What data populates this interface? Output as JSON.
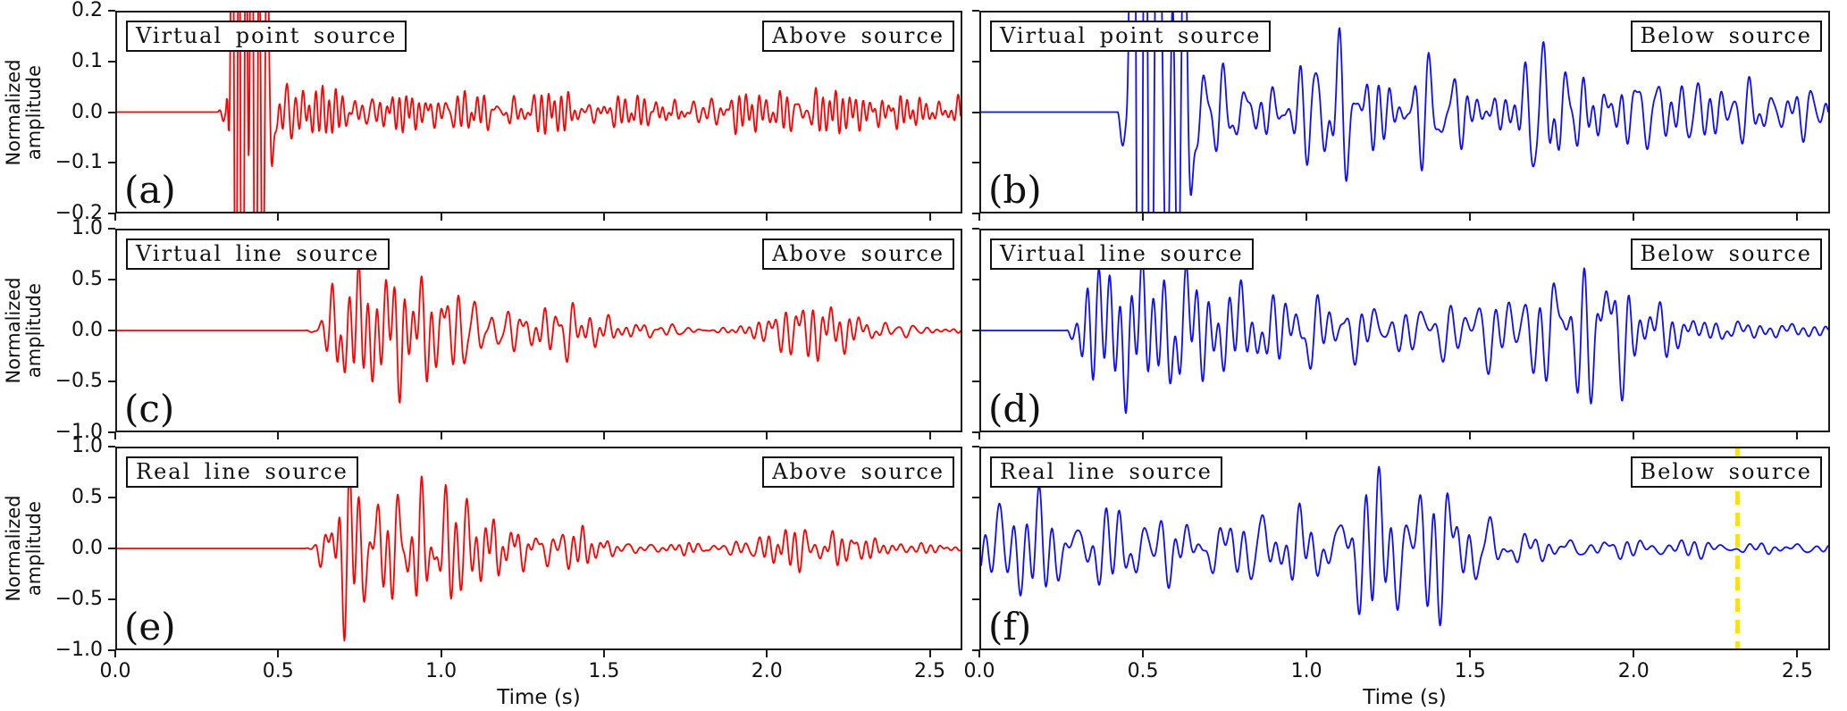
{
  "figure": {
    "background": "#ffffff",
    "description": "Six-panel seismic waveform comparison figure"
  },
  "chart_data": {
    "type": "line",
    "xlabel": "Time (s)",
    "ylabel_lines": [
      "Normalized",
      "amplitude"
    ],
    "xlim": [
      0,
      2.6
    ],
    "xtick_labels": [
      "0.0",
      "0.5",
      "1.0",
      "1.5",
      "2.0",
      "2.5"
    ],
    "xtick_values": [
      0,
      0.5,
      1.0,
      1.5,
      2.0,
      2.5
    ],
    "grid": false,
    "legend": "none",
    "panels": [
      {
        "id": "a",
        "row": 0,
        "col": 0,
        "panel_label": "(a)",
        "source_label": "Virtual point source",
        "position_label": "Above source",
        "color": "#ff0000",
        "yabs": 0.2,
        "ytick_labels": [
          "0.2",
          "0.1",
          "0.0",
          "−0.1",
          "−0.2"
        ],
        "ytick_values": [
          0.2,
          0.1,
          0.0,
          -0.1,
          -0.2
        ],
        "onset_s": 0.33,
        "clips_beyond_axis": true,
        "freq_hz": 26,
        "seed": 11,
        "envelope": [
          [
            0,
            0
          ],
          [
            0.31,
            0
          ],
          [
            0.335,
            0.05
          ],
          [
            0.355,
            1.3
          ],
          [
            0.43,
            1.4
          ],
          [
            0.47,
            0.45
          ],
          [
            0.52,
            0.09
          ],
          [
            0.6,
            0.05
          ],
          [
            0.8,
            0.045
          ],
          [
            1.0,
            0.05
          ],
          [
            1.15,
            0.06
          ],
          [
            1.3,
            0.045
          ],
          [
            1.5,
            0.04
          ],
          [
            1.7,
            0.045
          ],
          [
            1.9,
            0.05
          ],
          [
            2.05,
            0.06
          ],
          [
            2.2,
            0.05
          ],
          [
            2.4,
            0.04
          ],
          [
            2.6,
            0.04
          ]
        ]
      },
      {
        "id": "b",
        "row": 0,
        "col": 1,
        "panel_label": "(b)",
        "source_label": "Virtual point source",
        "position_label": "Below source",
        "color": "#0d0dff",
        "yabs": 0.2,
        "ytick_labels": [],
        "ytick_values": [
          0.2,
          0.1,
          0.0,
          -0.1,
          -0.2
        ],
        "onset_s": 0.44,
        "clips_beyond_axis": true,
        "freq_hz": 15,
        "seed": 27,
        "envelope": [
          [
            0,
            0
          ],
          [
            0.42,
            0
          ],
          [
            0.445,
            0.3
          ],
          [
            0.46,
            1.5
          ],
          [
            0.55,
            1.1
          ],
          [
            0.62,
            0.55
          ],
          [
            0.7,
            0.12
          ],
          [
            0.8,
            0.1
          ],
          [
            0.95,
            0.09
          ],
          [
            1.05,
            0.16
          ],
          [
            1.15,
            0.18
          ],
          [
            1.3,
            0.12
          ],
          [
            1.45,
            0.1
          ],
          [
            1.6,
            0.12
          ],
          [
            1.75,
            0.17
          ],
          [
            1.88,
            0.16
          ],
          [
            2.0,
            0.1
          ],
          [
            2.2,
            0.08
          ],
          [
            2.35,
            0.07
          ],
          [
            2.6,
            0.06
          ]
        ]
      },
      {
        "id": "c",
        "row": 1,
        "col": 0,
        "panel_label": "(c)",
        "source_label": "Virtual line source",
        "position_label": "Above source",
        "color": "#ff0000",
        "yabs": 1.0,
        "ytick_labels": [
          "1.0",
          "0.5",
          "0.0",
          "−0.5",
          "−1.0"
        ],
        "ytick_values": [
          1.0,
          0.5,
          0.0,
          -0.5,
          -1.0
        ],
        "onset_s": 0.6,
        "clips_beyond_axis": false,
        "freq_hz": 20,
        "seed": 33,
        "envelope": [
          [
            0,
            0
          ],
          [
            0.58,
            0
          ],
          [
            0.61,
            0.06
          ],
          [
            0.65,
            0.4
          ],
          [
            0.68,
            0.95
          ],
          [
            0.72,
            1.0
          ],
          [
            0.8,
            0.85
          ],
          [
            0.9,
            0.8
          ],
          [
            1.0,
            0.75
          ],
          [
            1.1,
            0.6
          ],
          [
            1.2,
            0.45
          ],
          [
            1.3,
            0.35
          ],
          [
            1.45,
            0.25
          ],
          [
            1.55,
            0.12
          ],
          [
            1.7,
            0.08
          ],
          [
            1.85,
            0.08
          ],
          [
            1.95,
            0.15
          ],
          [
            2.05,
            0.3
          ],
          [
            2.15,
            0.42
          ],
          [
            2.25,
            0.35
          ],
          [
            2.35,
            0.15
          ],
          [
            2.5,
            0.08
          ],
          [
            2.6,
            0.06
          ]
        ]
      },
      {
        "id": "d",
        "row": 1,
        "col": 1,
        "panel_label": "(d)",
        "source_label": "Virtual line source",
        "position_label": "Below source",
        "color": "#0d0dff",
        "yabs": 1.0,
        "ytick_labels": [],
        "ytick_values": [
          1.0,
          0.5,
          0.0,
          -0.5,
          -1.0
        ],
        "onset_s": 0.27,
        "clips_beyond_axis": false,
        "freq_hz": 14,
        "seed": 44,
        "envelope": [
          [
            0,
            0
          ],
          [
            0.26,
            0
          ],
          [
            0.29,
            0.25
          ],
          [
            0.33,
            0.85
          ],
          [
            0.4,
            1.05
          ],
          [
            0.5,
            0.95
          ],
          [
            0.6,
            0.8
          ],
          [
            0.7,
            0.75
          ],
          [
            0.8,
            0.6
          ],
          [
            0.9,
            0.5
          ],
          [
            1.0,
            0.45
          ],
          [
            1.1,
            0.4
          ],
          [
            1.25,
            0.3
          ],
          [
            1.4,
            0.35
          ],
          [
            1.5,
            0.4
          ],
          [
            1.6,
            0.5
          ],
          [
            1.7,
            0.65
          ],
          [
            1.8,
            0.85
          ],
          [
            1.88,
            1.0
          ],
          [
            2.0,
            0.6
          ],
          [
            2.1,
            0.35
          ],
          [
            2.2,
            0.15
          ],
          [
            2.35,
            0.1
          ],
          [
            2.5,
            0.08
          ],
          [
            2.6,
            0.08
          ]
        ]
      },
      {
        "id": "e",
        "row": 2,
        "col": 0,
        "panel_label": "(e)",
        "source_label": "Real line source",
        "position_label": "Above source",
        "color": "#ff0000",
        "yabs": 1.0,
        "ytick_labels": [
          "1.0",
          "0.5",
          "0.0",
          "−0.5",
          "−1.0"
        ],
        "ytick_values": [
          1.0,
          0.5,
          0.0,
          -0.5,
          -1.0
        ],
        "onset_s": 0.6,
        "clips_beyond_axis": false,
        "freq_hz": 20,
        "seed": 58,
        "envelope": [
          [
            0,
            0
          ],
          [
            0.58,
            0
          ],
          [
            0.61,
            0.06
          ],
          [
            0.65,
            0.45
          ],
          [
            0.68,
            0.95
          ],
          [
            0.73,
            1.0
          ],
          [
            0.8,
            0.85
          ],
          [
            0.9,
            0.8
          ],
          [
            1.0,
            0.72
          ],
          [
            1.1,
            0.6
          ],
          [
            1.2,
            0.45
          ],
          [
            1.3,
            0.35
          ],
          [
            1.45,
            0.25
          ],
          [
            1.55,
            0.12
          ],
          [
            1.7,
            0.08
          ],
          [
            1.85,
            0.08
          ],
          [
            1.95,
            0.15
          ],
          [
            2.05,
            0.3
          ],
          [
            2.15,
            0.42
          ],
          [
            2.25,
            0.35
          ],
          [
            2.35,
            0.15
          ],
          [
            2.5,
            0.08
          ],
          [
            2.6,
            0.06
          ]
        ]
      },
      {
        "id": "f",
        "row": 2,
        "col": 1,
        "panel_label": "(f)",
        "source_label": "Real line source",
        "position_label": "Below source",
        "color": "#0d0dff",
        "yabs": 1.0,
        "ytick_labels": [],
        "ytick_values": [
          1.0,
          0.5,
          0.0,
          -0.5,
          -1.0
        ],
        "onset_s": 0.0,
        "clips_beyond_axis": false,
        "freq_hz": 13,
        "seed": 66,
        "envelope": [
          [
            0,
            0.3
          ],
          [
            0.05,
            0.6
          ],
          [
            0.1,
            0.65
          ],
          [
            0.2,
            0.6
          ],
          [
            0.3,
            0.5
          ],
          [
            0.4,
            0.5
          ],
          [
            0.5,
            0.45
          ],
          [
            0.6,
            0.45
          ],
          [
            0.7,
            0.4
          ],
          [
            0.8,
            0.45
          ],
          [
            0.9,
            0.5
          ],
          [
            1.0,
            0.55
          ],
          [
            1.1,
            0.7
          ],
          [
            1.2,
            0.9
          ],
          [
            1.28,
            1.0
          ],
          [
            1.4,
            0.95
          ],
          [
            1.5,
            0.7
          ],
          [
            1.6,
            0.35
          ],
          [
            1.7,
            0.2
          ],
          [
            1.8,
            0.15
          ],
          [
            1.9,
            0.12
          ],
          [
            2.0,
            0.12
          ],
          [
            2.1,
            0.1
          ],
          [
            2.2,
            0.1
          ],
          [
            2.3,
            0.08
          ],
          [
            2.4,
            0.08
          ],
          [
            2.5,
            0.07
          ],
          [
            2.6,
            0.07
          ]
        ],
        "marker": {
          "time_s": 2.32,
          "color": "#ffe206",
          "style": "dashed",
          "name": "event-marker-line"
        }
      }
    ]
  }
}
